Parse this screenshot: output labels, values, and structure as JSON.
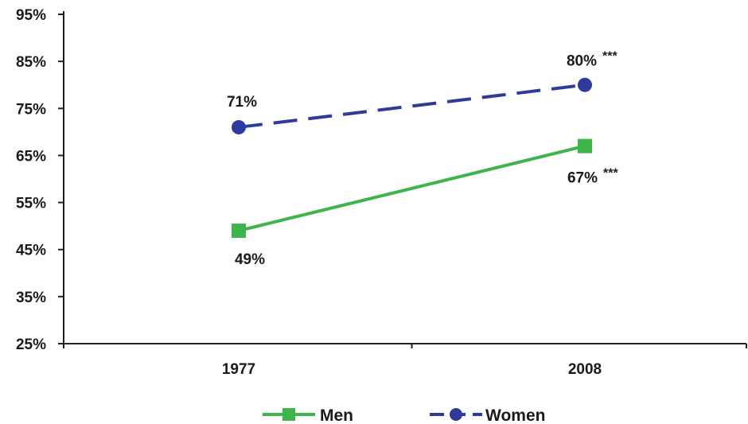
{
  "chart_data": {
    "type": "line",
    "categories": [
      "1977",
      "2008"
    ],
    "ylim": [
      25,
      95
    ],
    "yticks": [
      25,
      35,
      45,
      55,
      65,
      75,
      85,
      95
    ],
    "y_tick_suffix": "%",
    "grid": false,
    "legend_position": "bottom",
    "series": [
      {
        "name": "Men",
        "values": [
          49,
          67
        ],
        "labels": [
          "49%",
          "67%"
        ],
        "significance": [
          "",
          "***"
        ],
        "color": "#3cb54a",
        "line_style": "solid",
        "marker": "square"
      },
      {
        "name": "Women",
        "values": [
          71,
          80
        ],
        "labels": [
          "71%",
          "80%"
        ],
        "significance": [
          "",
          "***"
        ],
        "color": "#2e3a9c",
        "line_style": "dashed",
        "marker": "circle"
      }
    ]
  }
}
